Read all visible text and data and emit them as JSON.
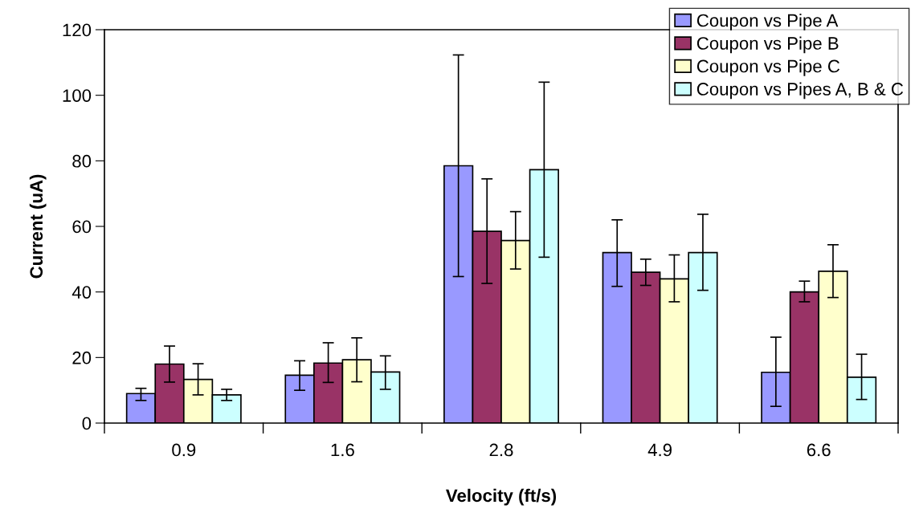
{
  "chart_data": {
    "type": "bar",
    "xlabel": "Velocity (ft/s)",
    "ylabel": "Current (uA)",
    "categories": [
      "0.9",
      "1.6",
      "2.8",
      "4.9",
      "6.6"
    ],
    "ylim": [
      0,
      120
    ],
    "yticks": [
      0,
      20,
      40,
      60,
      80,
      100,
      120
    ],
    "grid": false,
    "legend": "top right",
    "series": [
      {
        "name": "Coupon vs Pipe A",
        "color": "#9999ff",
        "values": [
          9,
          14.6,
          78.5,
          52,
          15.5
        ],
        "errors": [
          [
            6.9,
            10.6
          ],
          [
            10,
            19
          ],
          [
            44.7,
            112.3
          ],
          [
            41.7,
            62
          ],
          [
            5.1,
            26.2
          ]
        ]
      },
      {
        "name": "Coupon vs Pipe B",
        "color": "#993366",
        "values": [
          18,
          18.3,
          58.5,
          46,
          40
        ],
        "errors": [
          [
            12.5,
            23.5
          ],
          [
            12.4,
            24.5
          ],
          [
            42.6,
            74.5
          ],
          [
            42,
            50
          ],
          [
            37,
            43.3
          ]
        ]
      },
      {
        "name": "Coupon vs Pipe C",
        "color": "#ffffcc",
        "values": [
          13.3,
          19.3,
          55.7,
          44,
          46.3
        ],
        "errors": [
          [
            8.6,
            18.1
          ],
          [
            12.6,
            26
          ],
          [
            47,
            64.5
          ],
          [
            37,
            51.3
          ],
          [
            38.3,
            54.4
          ]
        ]
      },
      {
        "name": "Coupon vs Pipes A, B & C",
        "color": "#ccffff",
        "values": [
          8.6,
          15.6,
          77.3,
          52,
          14
        ],
        "errors": [
          [
            6.9,
            10.3
          ],
          [
            10.3,
            20.5
          ],
          [
            50.6,
            104
          ],
          [
            40.5,
            63.7
          ],
          [
            7.2,
            21
          ]
        ]
      }
    ]
  }
}
